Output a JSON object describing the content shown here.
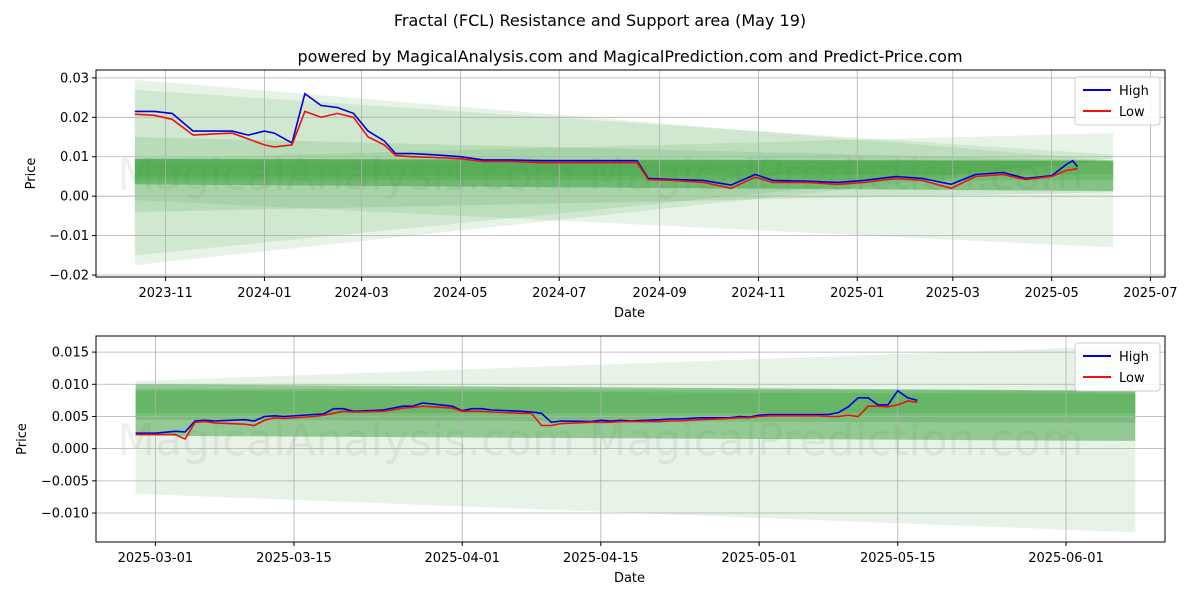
{
  "figure": {
    "suptitle": "Fractal (FCL) Resistance and Support area (May 19)",
    "subtitle": "powered by MagicalAnalysis.com and MagicalPrediction.com and Predict-Price.com",
    "watermarks": [
      "MagicalAnalysis.com",
      "MagicalPrediction.com"
    ]
  },
  "colors": {
    "high": "#0000dd",
    "low": "#ee1111",
    "band": "#2e9a2e",
    "grid": "#b0b0b0"
  },
  "chart_data": [
    {
      "type": "line",
      "xlabel": "Date",
      "ylabel": "Price",
      "xlim": [
        "2023-09-19",
        "2025-07-10"
      ],
      "ylim": [
        -0.0205,
        0.032
      ],
      "xticks": [
        "2023-11-01",
        "2024-01-01",
        "2024-03-01",
        "2024-05-01",
        "2024-07-01",
        "2024-09-01",
        "2024-11-01",
        "2025-01-01",
        "2025-03-01",
        "2025-05-01",
        "2025-07-01"
      ],
      "xtick_labels": [
        "2023-11",
        "2024-01",
        "2024-03",
        "2024-05",
        "2024-07",
        "2024-09",
        "2024-11",
        "2025-01",
        "2025-03",
        "2025-05",
        "2025-07"
      ],
      "yticks": [
        -0.02,
        -0.01,
        0.0,
        0.01,
        0.02,
        0.03
      ],
      "ytick_labels": [
        "−0.02",
        "−0.01",
        "0.00",
        "0.01",
        "0.02",
        "0.03"
      ],
      "grid": true,
      "legend": "top-right",
      "series": [
        {
          "name": "High",
          "x": [
            "2023-10-13",
            "2023-10-25",
            "2023-11-05",
            "2023-11-18",
            "2023-12-01",
            "2023-12-12",
            "2023-12-22",
            "2024-01-01",
            "2024-01-07",
            "2024-01-18",
            "2024-01-26",
            "2024-02-05",
            "2024-02-15",
            "2024-02-25",
            "2024-03-05",
            "2024-03-15",
            "2024-03-22",
            "2024-04-01",
            "2024-04-15",
            "2024-05-01",
            "2024-05-15",
            "2024-06-01",
            "2024-06-20",
            "2024-07-10",
            "2024-07-25",
            "2024-08-10",
            "2024-08-18",
            "2024-08-25",
            "2024-09-10",
            "2024-09-28",
            "2024-10-15",
            "2024-10-30",
            "2024-11-10",
            "2024-12-01",
            "2024-12-20",
            "2025-01-05",
            "2025-01-25",
            "2025-02-10",
            "2025-02-28",
            "2025-03-15",
            "2025-04-01",
            "2025-04-15",
            "2025-05-01",
            "2025-05-10",
            "2025-05-14",
            "2025-05-17"
          ],
          "y": [
            0.0215,
            0.0215,
            0.021,
            0.0165,
            0.0165,
            0.0165,
            0.0155,
            0.0165,
            0.016,
            0.0135,
            0.026,
            0.023,
            0.0225,
            0.021,
            0.0165,
            0.014,
            0.0108,
            0.0108,
            0.0105,
            0.01,
            0.0092,
            0.0092,
            0.009,
            0.009,
            0.009,
            0.009,
            0.009,
            0.0045,
            0.0042,
            0.004,
            0.0028,
            0.0055,
            0.004,
            0.0038,
            0.0035,
            0.004,
            0.005,
            0.0045,
            0.003,
            0.0055,
            0.006,
            0.0045,
            0.0052,
            0.008,
            0.009,
            0.0075
          ]
        },
        {
          "name": "Low",
          "x": [
            "2023-10-13",
            "2023-10-25",
            "2023-11-05",
            "2023-11-18",
            "2023-12-01",
            "2023-12-12",
            "2023-12-22",
            "2024-01-01",
            "2024-01-07",
            "2024-01-18",
            "2024-01-26",
            "2024-02-05",
            "2024-02-15",
            "2024-02-25",
            "2024-03-05",
            "2024-03-15",
            "2024-03-22",
            "2024-04-01",
            "2024-04-15",
            "2024-05-01",
            "2024-05-15",
            "2024-06-01",
            "2024-06-20",
            "2024-07-10",
            "2024-07-25",
            "2024-08-10",
            "2024-08-18",
            "2024-08-25",
            "2024-09-10",
            "2024-09-28",
            "2024-10-15",
            "2024-10-30",
            "2024-11-10",
            "2024-12-01",
            "2024-12-20",
            "2025-01-05",
            "2025-01-25",
            "2025-02-10",
            "2025-02-28",
            "2025-03-15",
            "2025-04-01",
            "2025-04-15",
            "2025-05-01",
            "2025-05-10",
            "2025-05-14",
            "2025-05-17"
          ],
          "y": [
            0.0208,
            0.0205,
            0.0195,
            0.0155,
            0.0158,
            0.016,
            0.0145,
            0.013,
            0.0125,
            0.013,
            0.0215,
            0.02,
            0.021,
            0.02,
            0.015,
            0.013,
            0.0103,
            0.01,
            0.0098,
            0.0095,
            0.0088,
            0.0088,
            0.0085,
            0.0085,
            0.0085,
            0.0085,
            0.0085,
            0.0042,
            0.004,
            0.0035,
            0.002,
            0.0048,
            0.0035,
            0.0035,
            0.003,
            0.0035,
            0.0045,
            0.004,
            0.002,
            0.005,
            0.0055,
            0.0042,
            0.005,
            0.0065,
            0.0068,
            0.007
          ]
        }
      ],
      "bands": {
        "start": "2023-10-13",
        "end": "2025-06-08",
        "fans": [
          {
            "start": [
              -0.0175,
              0.0295
            ],
            "end": [
              0.009,
              0.009
            ],
            "opacity": 0.12
          },
          {
            "start": [
              -0.015,
              0.027
            ],
            "end": [
              0.0095,
              0.0105
            ],
            "opacity": 0.12
          },
          {
            "start": [
              -0.004,
              0.015
            ],
            "end": [
              0.001,
              0.009
            ],
            "opacity": 0.15
          },
          {
            "start": [
              -0.001,
              0.0095
            ],
            "end": [
              -0.013,
              0.016
            ],
            "opacity": 0.12
          },
          {
            "start": [
              0.003,
              0.0095
            ],
            "end": [
              0.0013,
              0.009
            ],
            "opacity": 0.45
          },
          {
            "start": [
              0.004,
              0.009
            ],
            "end": [
              0.004,
              0.009
            ],
            "opacity": 0.2
          },
          {
            "start": [
              0.005,
              0.0095
            ],
            "end": [
              0.0055,
              0.009
            ],
            "opacity": 0.2
          }
        ]
      }
    },
    {
      "type": "line",
      "xlabel": "Date",
      "ylabel": "Price",
      "xlim": [
        "2025-02-23",
        "2025-06-11"
      ],
      "ylim": [
        -0.0145,
        0.0175
      ],
      "xticks": [
        "2025-03-01",
        "2025-03-15",
        "2025-04-01",
        "2025-04-15",
        "2025-05-01",
        "2025-05-15",
        "2025-06-01"
      ],
      "xtick_labels": [
        "2025-03-01",
        "2025-03-15",
        "2025-04-01",
        "2025-04-15",
        "2025-05-01",
        "2025-05-15",
        "2025-06-01"
      ],
      "yticks": [
        -0.01,
        -0.005,
        0.0,
        0.005,
        0.01,
        0.015
      ],
      "ytick_labels": [
        "−0.010",
        "−0.005",
        "0.000",
        "0.005",
        "0.010",
        "0.015"
      ],
      "grid": true,
      "legend": "top-right",
      "series": [
        {
          "name": "High",
          "x": [
            "2025-02-27",
            "2025-03-01",
            "2025-03-03",
            "2025-03-04",
            "2025-03-05",
            "2025-03-06",
            "2025-03-07",
            "2025-03-10",
            "2025-03-11",
            "2025-03-12",
            "2025-03-13",
            "2025-03-14",
            "2025-03-17",
            "2025-03-18",
            "2025-03-19",
            "2025-03-20",
            "2025-03-21",
            "2025-03-24",
            "2025-03-25",
            "2025-03-26",
            "2025-03-27",
            "2025-03-28",
            "2025-03-31",
            "2025-04-01",
            "2025-04-02",
            "2025-04-03",
            "2025-04-04",
            "2025-04-07",
            "2025-04-08",
            "2025-04-09",
            "2025-04-10",
            "2025-04-11",
            "2025-04-14",
            "2025-04-15",
            "2025-04-16",
            "2025-04-17",
            "2025-04-18",
            "2025-04-21",
            "2025-04-22",
            "2025-04-23",
            "2025-04-24",
            "2025-04-25",
            "2025-04-28",
            "2025-04-29",
            "2025-04-30",
            "2025-05-01",
            "2025-05-02",
            "2025-05-05",
            "2025-05-06",
            "2025-05-07",
            "2025-05-08",
            "2025-05-09",
            "2025-05-10",
            "2025-05-11",
            "2025-05-12",
            "2025-05-13",
            "2025-05-14",
            "2025-05-15",
            "2025-05-16",
            "2025-05-17"
          ],
          "y": [
            0.0024,
            0.0024,
            0.0027,
            0.0026,
            0.0043,
            0.0044,
            0.0043,
            0.0045,
            0.0043,
            0.005,
            0.0051,
            0.005,
            0.0053,
            0.0054,
            0.0062,
            0.0062,
            0.0058,
            0.006,
            0.0063,
            0.0066,
            0.0066,
            0.0071,
            0.0066,
            0.0059,
            0.0062,
            0.0062,
            0.006,
            0.0058,
            0.0057,
            0.0055,
            0.0041,
            0.0043,
            0.0042,
            0.0044,
            0.0043,
            0.0044,
            0.0043,
            0.0045,
            0.0046,
            0.0046,
            0.0047,
            0.0048,
            0.0048,
            0.005,
            0.0049,
            0.0052,
            0.0053,
            0.0053,
            0.0053,
            0.0053,
            0.0053,
            0.0056,
            0.0065,
            0.0079,
            0.0079,
            0.0068,
            0.0068,
            0.009,
            0.0079,
            0.0075
          ]
        },
        {
          "name": "Low",
          "x": [
            "2025-02-27",
            "2025-03-01",
            "2025-03-03",
            "2025-03-04",
            "2025-03-05",
            "2025-03-06",
            "2025-03-07",
            "2025-03-10",
            "2025-03-11",
            "2025-03-12",
            "2025-03-13",
            "2025-03-14",
            "2025-03-17",
            "2025-03-18",
            "2025-03-19",
            "2025-03-20",
            "2025-03-21",
            "2025-03-24",
            "2025-03-25",
            "2025-03-26",
            "2025-03-27",
            "2025-03-28",
            "2025-03-31",
            "2025-04-01",
            "2025-04-02",
            "2025-04-03",
            "2025-04-04",
            "2025-04-07",
            "2025-04-08",
            "2025-04-09",
            "2025-04-10",
            "2025-04-11",
            "2025-04-14",
            "2025-04-15",
            "2025-04-16",
            "2025-04-17",
            "2025-04-18",
            "2025-04-21",
            "2025-04-22",
            "2025-04-23",
            "2025-04-24",
            "2025-04-25",
            "2025-04-28",
            "2025-04-29",
            "2025-04-30",
            "2025-05-01",
            "2025-05-02",
            "2025-05-05",
            "2025-05-06",
            "2025-05-07",
            "2025-05-08",
            "2025-05-09",
            "2025-05-10",
            "2025-05-11",
            "2025-05-12",
            "2025-05-13",
            "2025-05-14",
            "2025-05-15",
            "2025-05-16",
            "2025-05-17"
          ],
          "y": [
            0.0022,
            0.0022,
            0.0022,
            0.0015,
            0.0041,
            0.0042,
            0.004,
            0.0038,
            0.0036,
            0.0044,
            0.0048,
            0.0047,
            0.005,
            0.0052,
            0.0055,
            0.0058,
            0.0057,
            0.0058,
            0.006,
            0.0063,
            0.0064,
            0.0066,
            0.0063,
            0.0058,
            0.0058,
            0.0058,
            0.0057,
            0.0055,
            0.0055,
            0.0036,
            0.0036,
            0.0039,
            0.0041,
            0.0041,
            0.0041,
            0.0042,
            0.0042,
            0.0042,
            0.0043,
            0.0043,
            0.0044,
            0.0045,
            0.0047,
            0.0048,
            0.0048,
            0.005,
            0.0051,
            0.0051,
            0.0051,
            0.0051,
            0.005,
            0.005,
            0.0052,
            0.005,
            0.0066,
            0.0066,
            0.0065,
            0.0068,
            0.0074,
            0.0072
          ]
        }
      ],
      "bands": {
        "start": "2025-02-27",
        "end": "2025-06-08",
        "fans": [
          {
            "start": [
              -0.007,
              0.0105
            ],
            "end": [
              -0.013,
              0.016
            ],
            "opacity": 0.12
          },
          {
            "start": [
              0.002,
              0.01
            ],
            "end": [
              0.0012,
              0.009
            ],
            "opacity": 0.45
          },
          {
            "start": [
              0.0045,
              0.0093
            ],
            "end": [
              0.004,
              0.009
            ],
            "opacity": 0.25
          },
          {
            "start": [
              0.0055,
              0.009
            ],
            "end": [
              0.0055,
              0.0085
            ],
            "opacity": 0.25
          }
        ]
      }
    }
  ]
}
